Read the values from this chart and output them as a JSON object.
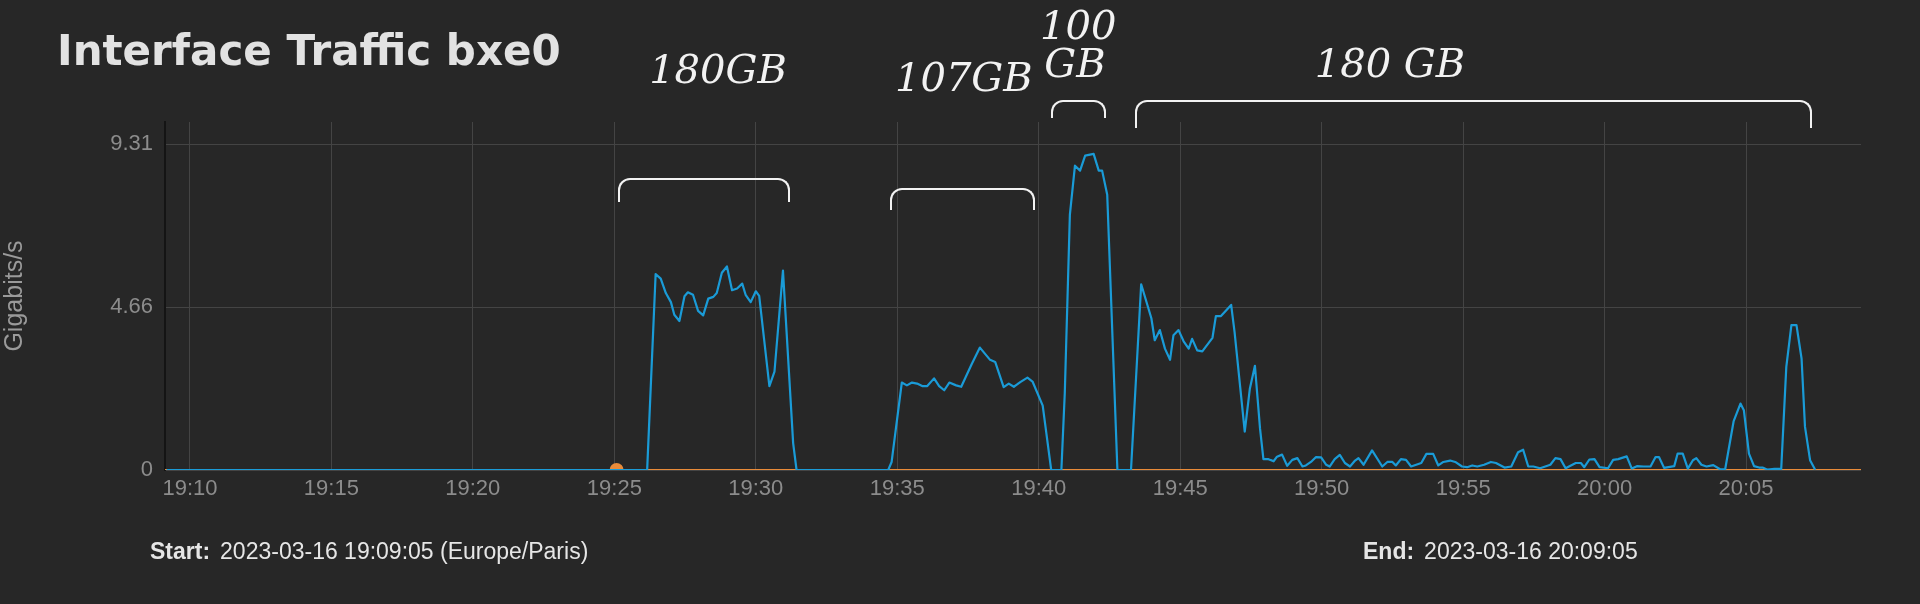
{
  "chart_data": {
    "type": "line",
    "title": "Interface Traffic bxe0",
    "ylabel": "Gigabits/s",
    "x": [
      19.153,
      19.436,
      19.441,
      19.444,
      19.447,
      19.45,
      19.452,
      19.455,
      19.458,
      19.46,
      19.463,
      19.466,
      19.469,
      19.472,
      19.475,
      19.477,
      19.48,
      19.483,
      19.486,
      19.489,
      19.492,
      19.494,
      19.497,
      19.5,
      19.502,
      19.508,
      19.511,
      19.516,
      19.522,
      19.524,
      19.578,
      19.58,
      19.586,
      19.589,
      19.592,
      19.595,
      19.598,
      19.601,
      19.605,
      19.608,
      19.611,
      19.614,
      19.618,
      19.621,
      19.627,
      19.632,
      19.638,
      19.641,
      19.646,
      19.649,
      19.652,
      19.656,
      19.66,
      19.663,
      19.669,
      19.674,
      19.68,
      19.682,
      19.685,
      19.688,
      19.691,
      19.694,
      19.699,
      19.702,
      19.704,
      19.707,
      19.713,
      19.721,
      19.727,
      19.733,
      19.735,
      19.738,
      19.741,
      19.744,
      19.746,
      19.749,
      19.752,
      19.755,
      19.757,
      19.76,
      19.763,
      19.769,
      19.771,
      19.774,
      19.78,
      19.782,
      19.788,
      19.791,
      19.794,
      19.797,
      19.799,
      19.802,
      19.805,
      19.807,
      19.81,
      19.813,
      19.816,
      19.819,
      19.822,
      19.824,
      19.827,
      19.83,
      19.833,
      19.836,
      19.838,
      19.841,
      19.844,
      19.847,
      19.85,
      19.853,
      19.855,
      19.858,
      19.863,
      19.869,
      19.872,
      19.875,
      19.877,
      19.88,
      19.883,
      19.886,
      19.889,
      19.892,
      19.895,
      19.899,
      19.902,
      19.905,
      19.909,
      19.912,
      19.916,
      19.919,
      19.922,
      19.925,
      19.929,
      19.933,
      19.936,
      19.941,
      19.945,
      19.949,
      19.952,
      19.955,
      19.958,
      19.962,
      19.968,
      19.971,
      19.974,
      19.977,
      19.983,
      19.986,
      19.988,
      19.991,
      19.994,
      19.997,
      20.002,
      20.005,
      20.008,
      20.013,
      20.016,
      20.019,
      20.023,
      20.027,
      20.03,
      20.032,
      20.035,
      20.041,
      20.043,
      20.046,
      20.049,
      20.052,
      20.054,
      20.057,
      20.06,
      20.064,
      20.068,
      20.071,
      20.076,
      20.08,
      20.082,
      20.085,
      20.088,
      20.091,
      20.093,
      20.096,
      20.1,
      20.104,
      20.107,
      20.11,
      20.113,
      20.116,
      20.118,
      20.121,
      20.124
    ],
    "series": [
      {
        "color": "#1a9bd7",
        "values": [
          0,
          0,
          5.6,
          5.47,
          5.06,
          4.8,
          4.44,
          4.26,
          4.97,
          5.08,
          5.01,
          4.55,
          4.42,
          4.9,
          4.95,
          5.06,
          5.64,
          5.82,
          5.14,
          5.19,
          5.33,
          5.01,
          4.8,
          5.11,
          4.98,
          2.4,
          2.81,
          5.7,
          0.77,
          0,
          0,
          0.23,
          2.5,
          2.42,
          2.5,
          2.47,
          2.4,
          2.4,
          2.62,
          2.4,
          2.28,
          2.5,
          2.42,
          2.38,
          3.01,
          3.5,
          3.15,
          3.09,
          2.37,
          2.47,
          2.38,
          2.52,
          2.64,
          2.53,
          1.84,
          0,
          0,
          2.2,
          7.3,
          8.7,
          8.56,
          8.99,
          9.04,
          8.56,
          8.56,
          7.87,
          0,
          0,
          5.31,
          4.34,
          3.71,
          4.0,
          3.47,
          3.15,
          3.85,
          4.0,
          3.68,
          3.47,
          3.75,
          3.42,
          3.39,
          3.78,
          4.4,
          4.4,
          4.72,
          3.95,
          1.1,
          2.32,
          2.98,
          1.19,
          0.31,
          0.31,
          0.25,
          0.38,
          0.44,
          0.12,
          0.29,
          0.34,
          0.1,
          0.13,
          0.23,
          0.37,
          0.36,
          0.15,
          0.1,
          0.31,
          0.43,
          0.2,
          0.1,
          0.27,
          0.34,
          0.15,
          0.56,
          0.1,
          0.23,
          0.23,
          0.13,
          0.31,
          0.29,
          0.1,
          0.15,
          0.2,
          0.46,
          0.46,
          0.13,
          0.23,
          0.27,
          0.23,
          0.1,
          0.08,
          0.13,
          0.1,
          0.15,
          0.23,
          0.2,
          0.07,
          0.1,
          0.51,
          0.58,
          0.1,
          0.1,
          0.05,
          0.15,
          0.34,
          0.31,
          0.05,
          0.2,
          0.2,
          0.08,
          0.3,
          0.31,
          0.08,
          0.05,
          0.29,
          0.31,
          0.39,
          0.04,
          0.11,
          0.1,
          0.1,
          0.37,
          0.37,
          0.06,
          0.11,
          0.47,
          0.47,
          0.04,
          0.28,
          0.34,
          0.15,
          0.1,
          0.14,
          0.02,
          0.02,
          1.4,
          1.9,
          1.71,
          0.47,
          0.11,
          0.07,
          0.07,
          0.01,
          0.03,
          0.03,
          2.95,
          4.14,
          4.14,
          3.18,
          1.24,
          0.28,
          0.01
        ]
      },
      {
        "color": "#e98b39",
        "x": [
          19.152,
          20.151
        ],
        "values": [
          0,
          0
        ]
      },
      {
        "type": "scatter",
        "marker": "circle",
        "color": "#e98b39",
        "x": [
          19.418
        ],
        "values": [
          0
        ]
      }
    ],
    "xlim": [
      19.152,
      20.151
    ],
    "xticks": [
      {
        "value": 19.1667,
        "label": "19:10"
      },
      {
        "value": 19.25,
        "label": "19:15"
      },
      {
        "value": 19.3333,
        "label": "19:20"
      },
      {
        "value": 19.4167,
        "label": "19:25"
      },
      {
        "value": 19.5,
        "label": "19:30"
      },
      {
        "value": 19.5833,
        "label": "19:35"
      },
      {
        "value": 19.6667,
        "label": "19:40"
      },
      {
        "value": 19.75,
        "label": "19:45"
      },
      {
        "value": 19.8333,
        "label": "19:50"
      },
      {
        "value": 19.9167,
        "label": "19:55"
      },
      {
        "value": 20,
        "label": "20:00"
      },
      {
        "value": 20.0833,
        "label": "20:05"
      }
    ],
    "ylim": [
      0,
      9.95
    ],
    "yticks": [
      0,
      4.66,
      9.31
    ],
    "grid": true,
    "legend": false,
    "marker": "none",
    "line_style": "solid",
    "annotations": [
      "180GB",
      "107GB",
      "100 GB",
      "180 GB",
      "Start: 2023-03-16 19:09:05 (Europe/Paris)",
      "End: 2023-03-16 20:09:05"
    ]
  }
}
